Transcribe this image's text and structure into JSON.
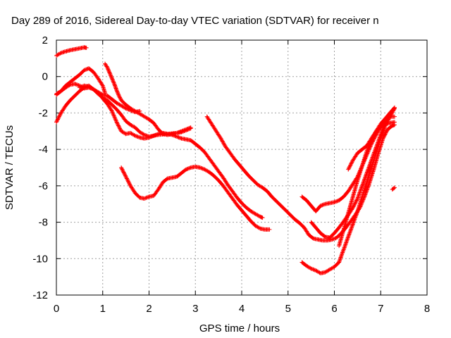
{
  "chart_data": {
    "type": "scatter",
    "title": "Day 289 of 2016, Sidereal Day-to-day VTEC variation (SDTVAR) for receiver n",
    "xlabel": "GPS time / hours",
    "ylabel": "SDTVAR / TECUs",
    "xlim": [
      0,
      8
    ],
    "ylim": [
      -12,
      2
    ],
    "xticks": [
      "0",
      "1",
      "2",
      "3",
      "4",
      "5",
      "6",
      "7",
      "8"
    ],
    "yticks": [
      "2",
      "0",
      "-2",
      "-4",
      "-6",
      "-8",
      "-10",
      "-12"
    ],
    "grid": true,
    "marker": "+",
    "color": "#ff0000",
    "series": [
      {
        "points": [
          [
            0.0,
            1.15
          ],
          [
            0.1,
            1.3
          ],
          [
            0.2,
            1.38
          ],
          [
            0.3,
            1.45
          ],
          [
            0.4,
            1.5
          ],
          [
            0.5,
            1.55
          ],
          [
            0.6,
            1.6
          ],
          [
            0.65,
            1.58
          ]
        ]
      },
      {
        "points": [
          [
            0.0,
            -1.0
          ],
          [
            0.1,
            -0.8
          ],
          [
            0.2,
            -0.5
          ],
          [
            0.3,
            -0.3
          ],
          [
            0.4,
            -0.1
          ],
          [
            0.5,
            0.1
          ],
          [
            0.6,
            0.35
          ],
          [
            0.7,
            0.45
          ],
          [
            0.8,
            0.25
          ],
          [
            0.9,
            -0.1
          ],
          [
            1.0,
            -0.5
          ],
          [
            1.05,
            -0.9
          ]
        ]
      },
      {
        "points": [
          [
            0.0,
            -2.5
          ],
          [
            0.1,
            -2.0
          ],
          [
            0.2,
            -1.6
          ],
          [
            0.3,
            -1.3
          ],
          [
            0.4,
            -1.05
          ],
          [
            0.5,
            -0.8
          ],
          [
            0.6,
            -0.6
          ],
          [
            0.7,
            -0.5
          ],
          [
            0.8,
            -0.7
          ],
          [
            0.9,
            -0.95
          ],
          [
            1.0,
            -1.15
          ],
          [
            1.1,
            -1.3
          ],
          [
            1.2,
            -1.55
          ],
          [
            1.3,
            -1.8
          ],
          [
            1.4,
            -2.1
          ],
          [
            1.5,
            -2.45
          ],
          [
            1.6,
            -2.65
          ],
          [
            1.7,
            -2.8
          ],
          [
            1.8,
            -3.05
          ],
          [
            1.9,
            -3.2
          ],
          [
            2.0,
            -3.3
          ],
          [
            2.2,
            -3.2
          ],
          [
            2.4,
            -3.15
          ],
          [
            2.6,
            -3.1
          ],
          [
            2.8,
            -2.9
          ],
          [
            2.9,
            -2.8
          ]
        ]
      },
      {
        "points": [
          [
            0.0,
            -0.95
          ],
          [
            0.1,
            -0.8
          ],
          [
            0.2,
            -0.6
          ],
          [
            0.3,
            -0.45
          ],
          [
            0.4,
            -0.4
          ],
          [
            0.5,
            -0.5
          ],
          [
            0.6,
            -0.65
          ],
          [
            0.7,
            -0.6
          ],
          [
            0.8,
            -0.7
          ],
          [
            0.9,
            -0.85
          ],
          [
            1.0,
            -1.0
          ],
          [
            1.1,
            -1.05
          ],
          [
            1.2,
            -1.25
          ],
          [
            1.3,
            -1.45
          ],
          [
            1.4,
            -1.6
          ],
          [
            1.5,
            -1.75
          ],
          [
            1.6,
            -1.85
          ],
          [
            1.7,
            -1.95
          ],
          [
            1.8,
            -1.9
          ]
        ]
      },
      {
        "points": [
          [
            0.5,
            -0.6
          ],
          [
            0.6,
            -0.5
          ],
          [
            0.7,
            -0.55
          ],
          [
            0.8,
            -0.7
          ],
          [
            0.9,
            -0.9
          ],
          [
            1.0,
            -1.2
          ],
          [
            1.1,
            -1.5
          ],
          [
            1.2,
            -1.9
          ],
          [
            1.3,
            -2.5
          ],
          [
            1.4,
            -3.0
          ],
          [
            1.5,
            -3.15
          ],
          [
            1.6,
            -3.1
          ],
          [
            1.7,
            -3.25
          ],
          [
            1.8,
            -3.35
          ],
          [
            1.9,
            -3.4
          ],
          [
            2.0,
            -3.35
          ],
          [
            2.1,
            -3.25
          ],
          [
            2.2,
            -3.15
          ],
          [
            2.3,
            -3.1
          ],
          [
            2.4,
            -3.15
          ],
          [
            2.5,
            -3.2
          ],
          [
            2.6,
            -3.3
          ],
          [
            2.7,
            -3.4
          ],
          [
            2.8,
            -3.45
          ],
          [
            2.9,
            -3.5
          ],
          [
            3.0,
            -3.7
          ],
          [
            3.1,
            -3.9
          ],
          [
            3.2,
            -4.15
          ],
          [
            3.3,
            -4.5
          ],
          [
            3.4,
            -4.85
          ],
          [
            3.5,
            -5.2
          ],
          [
            3.6,
            -5.55
          ],
          [
            3.7,
            -5.95
          ],
          [
            3.8,
            -6.3
          ],
          [
            3.9,
            -6.65
          ],
          [
            4.0,
            -6.95
          ],
          [
            4.1,
            -7.2
          ],
          [
            4.2,
            -7.4
          ],
          [
            4.3,
            -7.55
          ],
          [
            4.4,
            -7.7
          ],
          [
            4.45,
            -7.75
          ]
        ]
      },
      {
        "points": [
          [
            1.05,
            0.7
          ],
          [
            1.1,
            0.5
          ],
          [
            1.15,
            0.2
          ],
          [
            1.2,
            -0.1
          ],
          [
            1.25,
            -0.4
          ],
          [
            1.3,
            -0.75
          ],
          [
            1.35,
            -1.05
          ],
          [
            1.4,
            -1.3
          ],
          [
            1.5,
            -1.55
          ],
          [
            1.6,
            -1.75
          ],
          [
            1.7,
            -1.9
          ],
          [
            1.8,
            -2.05
          ],
          [
            1.9,
            -2.2
          ],
          [
            2.0,
            -2.35
          ],
          [
            2.1,
            -2.55
          ],
          [
            2.2,
            -2.9
          ],
          [
            2.3,
            -3.15
          ],
          [
            2.4,
            -3.2
          ],
          [
            2.5,
            -3.15
          ],
          [
            2.6,
            -3.1
          ],
          [
            2.7,
            -3.05
          ],
          [
            2.8,
            -2.95
          ],
          [
            2.9,
            -2.85
          ]
        ]
      },
      {
        "points": [
          [
            1.4,
            -5.0
          ],
          [
            1.5,
            -5.5
          ],
          [
            1.6,
            -6.0
          ],
          [
            1.7,
            -6.4
          ],
          [
            1.8,
            -6.65
          ],
          [
            1.9,
            -6.7
          ],
          [
            2.0,
            -6.6
          ],
          [
            2.1,
            -6.55
          ],
          [
            2.2,
            -6.2
          ],
          [
            2.3,
            -5.8
          ],
          [
            2.4,
            -5.6
          ],
          [
            2.5,
            -5.55
          ],
          [
            2.6,
            -5.5
          ],
          [
            2.7,
            -5.3
          ],
          [
            2.8,
            -5.1
          ],
          [
            2.9,
            -5.0
          ],
          [
            3.0,
            -4.95
          ],
          [
            3.1,
            -5.0
          ],
          [
            3.2,
            -5.1
          ],
          [
            3.3,
            -5.25
          ],
          [
            3.4,
            -5.45
          ],
          [
            3.5,
            -5.7
          ],
          [
            3.6,
            -6.0
          ],
          [
            3.7,
            -6.35
          ],
          [
            3.8,
            -6.7
          ],
          [
            3.9,
            -7.05
          ],
          [
            4.0,
            -7.35
          ],
          [
            4.1,
            -7.65
          ],
          [
            4.2,
            -7.95
          ],
          [
            4.3,
            -8.2
          ],
          [
            4.4,
            -8.35
          ],
          [
            4.5,
            -8.4
          ],
          [
            4.6,
            -8.4
          ]
        ]
      },
      {
        "points": [
          [
            3.25,
            -2.2
          ],
          [
            3.35,
            -2.6
          ],
          [
            3.45,
            -3.0
          ],
          [
            3.55,
            -3.4
          ],
          [
            3.65,
            -3.85
          ],
          [
            3.75,
            -4.2
          ],
          [
            3.85,
            -4.55
          ],
          [
            3.95,
            -4.85
          ],
          [
            4.05,
            -5.15
          ],
          [
            4.15,
            -5.45
          ],
          [
            4.25,
            -5.7
          ],
          [
            4.35,
            -5.95
          ],
          [
            4.45,
            -6.1
          ],
          [
            4.55,
            -6.3
          ],
          [
            4.65,
            -6.6
          ],
          [
            4.75,
            -6.85
          ],
          [
            4.85,
            -7.1
          ],
          [
            4.95,
            -7.35
          ],
          [
            5.05,
            -7.6
          ],
          [
            5.15,
            -7.85
          ],
          [
            5.25,
            -8.05
          ],
          [
            5.35,
            -8.3
          ],
          [
            5.45,
            -8.7
          ],
          [
            5.55,
            -8.9
          ],
          [
            5.65,
            -8.95
          ],
          [
            5.75,
            -9.0
          ],
          [
            5.85,
            -9.0
          ],
          [
            5.95,
            -8.95
          ],
          [
            6.05,
            -8.85
          ],
          [
            6.15,
            -8.6
          ],
          [
            6.25,
            -8.3
          ],
          [
            6.35,
            -7.95
          ],
          [
            6.45,
            -7.6
          ],
          [
            6.55,
            -7.2
          ],
          [
            6.65,
            -6.6
          ],
          [
            6.75,
            -5.9
          ],
          [
            6.85,
            -5.1
          ],
          [
            6.95,
            -4.2
          ],
          [
            7.05,
            -3.4
          ],
          [
            7.15,
            -2.9
          ],
          [
            7.25,
            -2.7
          ],
          [
            7.3,
            -2.65
          ]
        ]
      },
      {
        "points": [
          [
            5.3,
            -6.6
          ],
          [
            5.4,
            -6.8
          ],
          [
            5.5,
            -7.1
          ],
          [
            5.6,
            -7.4
          ],
          [
            5.7,
            -7.1
          ],
          [
            5.8,
            -7.0
          ],
          [
            5.9,
            -6.95
          ],
          [
            6.0,
            -6.9
          ],
          [
            6.1,
            -6.8
          ],
          [
            6.2,
            -6.6
          ],
          [
            6.3,
            -6.3
          ],
          [
            6.4,
            -5.9
          ],
          [
            6.5,
            -5.5
          ],
          [
            6.6,
            -4.9
          ],
          [
            6.7,
            -4.3
          ],
          [
            6.8,
            -3.7
          ],
          [
            6.9,
            -3.2
          ],
          [
            7.0,
            -2.75
          ],
          [
            7.1,
            -2.4
          ],
          [
            7.2,
            -2.2
          ],
          [
            7.3,
            -2.2
          ]
        ]
      },
      {
        "points": [
          [
            5.3,
            -10.2
          ],
          [
            5.4,
            -10.4
          ],
          [
            5.5,
            -10.55
          ],
          [
            5.6,
            -10.65
          ],
          [
            5.7,
            -10.8
          ],
          [
            5.8,
            -10.75
          ],
          [
            5.9,
            -10.6
          ],
          [
            6.0,
            -10.45
          ],
          [
            6.1,
            -10.2
          ],
          [
            6.2,
            -9.5
          ],
          [
            6.3,
            -8.8
          ],
          [
            6.4,
            -8.1
          ],
          [
            6.5,
            -7.4
          ],
          [
            6.6,
            -6.6
          ],
          [
            6.7,
            -5.8
          ],
          [
            6.8,
            -5.0
          ],
          [
            6.9,
            -4.2
          ],
          [
            7.0,
            -3.4
          ],
          [
            7.1,
            -2.7
          ],
          [
            7.2,
            -2.2
          ],
          [
            7.3,
            -1.75
          ]
        ]
      },
      {
        "points": [
          [
            5.5,
            -8.0
          ],
          [
            5.6,
            -8.3
          ],
          [
            5.7,
            -8.6
          ],
          [
            5.8,
            -8.8
          ],
          [
            5.9,
            -8.85
          ],
          [
            6.0,
            -8.6
          ],
          [
            6.1,
            -8.3
          ],
          [
            6.2,
            -7.95
          ],
          [
            6.3,
            -7.6
          ],
          [
            6.4,
            -7.2
          ],
          [
            6.5,
            -6.7
          ],
          [
            6.6,
            -6.0
          ],
          [
            6.7,
            -5.3
          ],
          [
            6.8,
            -4.6
          ],
          [
            6.9,
            -3.9
          ],
          [
            7.0,
            -3.2
          ],
          [
            7.1,
            -2.5
          ],
          [
            7.2,
            -2.0
          ],
          [
            7.3,
            -1.7
          ]
        ]
      },
      {
        "points": [
          [
            6.1,
            -9.3
          ],
          [
            6.2,
            -8.4
          ],
          [
            6.3,
            -7.5
          ],
          [
            6.4,
            -6.6
          ],
          [
            6.5,
            -5.7
          ],
          [
            6.6,
            -4.9
          ],
          [
            6.7,
            -4.1
          ],
          [
            6.8,
            -3.5
          ],
          [
            6.9,
            -3.0
          ],
          [
            7.0,
            -2.6
          ],
          [
            7.1,
            -2.3
          ],
          [
            7.2,
            -2.0
          ],
          [
            7.3,
            -1.75
          ]
        ]
      },
      {
        "points": [
          [
            6.3,
            -5.1
          ],
          [
            6.4,
            -4.6
          ],
          [
            6.5,
            -4.2
          ],
          [
            6.6,
            -4.0
          ],
          [
            6.7,
            -3.8
          ],
          [
            6.8,
            -3.4
          ],
          [
            6.9,
            -3.0
          ],
          [
            7.0,
            -2.75
          ],
          [
            7.1,
            -2.6
          ],
          [
            7.2,
            -2.55
          ],
          [
            7.3,
            -2.5
          ]
        ]
      },
      {
        "points": [
          [
            7.25,
            -6.2
          ],
          [
            7.3,
            -6.1
          ]
        ]
      }
    ]
  }
}
